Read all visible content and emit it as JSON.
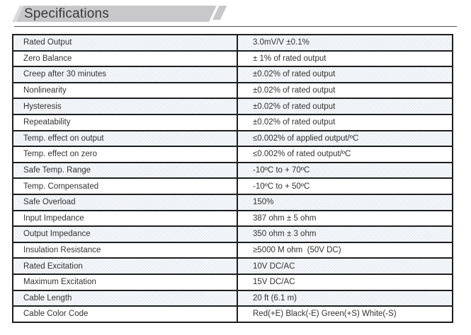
{
  "page": {
    "title": "Specifications"
  },
  "colors": {
    "header_bg": "#c8c8ca",
    "header_accent": "#dbdbdd",
    "alt_row_bg": "#e9edf3",
    "border": "#1e1e1e",
    "text": "#333333"
  },
  "table": {
    "rows": [
      {
        "label": "Rated Output",
        "value": "3.0mV/V ±0.1%"
      },
      {
        "label": "Zero Balance",
        "value": "± 1% of rated output"
      },
      {
        "label": "Creep after 30 minutes",
        "value": "±0.02% of rated output"
      },
      {
        "label": "Nonlinearity",
        "value": "±0.02% of rated output"
      },
      {
        "label": "Hysteresis",
        "value": "±0.02% of rated output"
      },
      {
        "label": "Repeatability",
        "value": "±0.02% of rated output"
      },
      {
        "label": "Temp. effect on output",
        "value": "≤0.002% of applied output/ºC"
      },
      {
        "label": "Temp. effect on zero",
        "value": "≤0.002% of rated output/ºC"
      },
      {
        "label": "Safe Temp. Range",
        "value": "-10ºC to + 70ºC"
      },
      {
        "label": "Temp. Compensated",
        "value": "-10ºC to + 50ºC"
      },
      {
        "label": "Safe Overload",
        "value": "150%"
      },
      {
        "label": "Input Impedance",
        "value": "387 ohm ± 5 ohm"
      },
      {
        "label": "Output Impedance",
        "value": "350 ohm ± 3 ohm"
      },
      {
        "label": "Insulation Resistance",
        "value": "≥5000 M ohm  (50V DC)"
      },
      {
        "label": "Rated Excitation",
        "value": "10V DC/AC"
      },
      {
        "label": "Maximum Excitation",
        "value": "15V DC/AC"
      },
      {
        "label": "Cable Length",
        "value": "20 ft (6.1 m)"
      },
      {
        "label": "Cable Color Code",
        "value": "Red(+E) Black(-E) Green(+S) White(-S)"
      }
    ]
  }
}
